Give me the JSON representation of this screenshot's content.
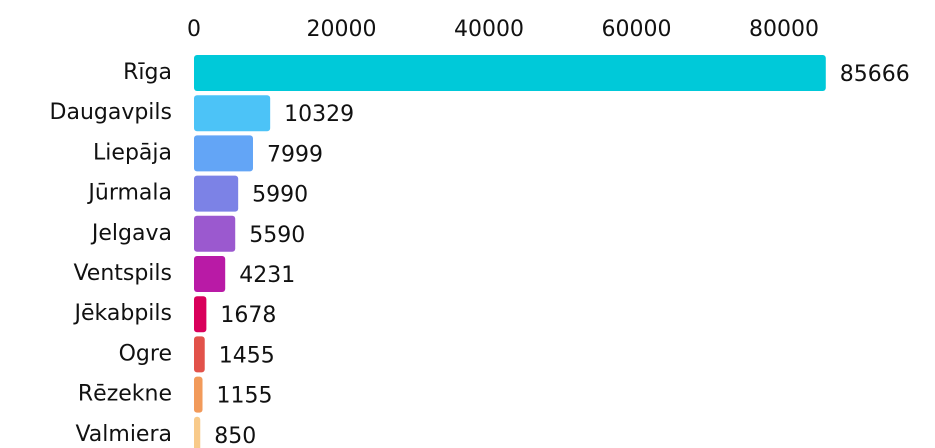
{
  "chart_data": {
    "type": "bar",
    "orientation": "horizontal",
    "categories": [
      "Rīga",
      "Daugavpils",
      "Liepāja",
      "Jūrmala",
      "Jelgava",
      "Ventspils",
      "Jēkabpils",
      "Ogre",
      "Rēzekne",
      "Valmiera"
    ],
    "values": [
      85666,
      10329,
      7999,
      5990,
      5590,
      4231,
      1678,
      1455,
      1155,
      850
    ],
    "colors": [
      "#00c9d9",
      "#4cc3f7",
      "#63a5f6",
      "#7c82e6",
      "#9b59cf",
      "#b91aa6",
      "#d9005b",
      "#e2524a",
      "#f29a5a",
      "#f8ca8a"
    ],
    "xlim": [
      0,
      86000
    ],
    "xticks": [
      0,
      20000,
      40000,
      60000,
      80000
    ],
    "grid": false
  }
}
